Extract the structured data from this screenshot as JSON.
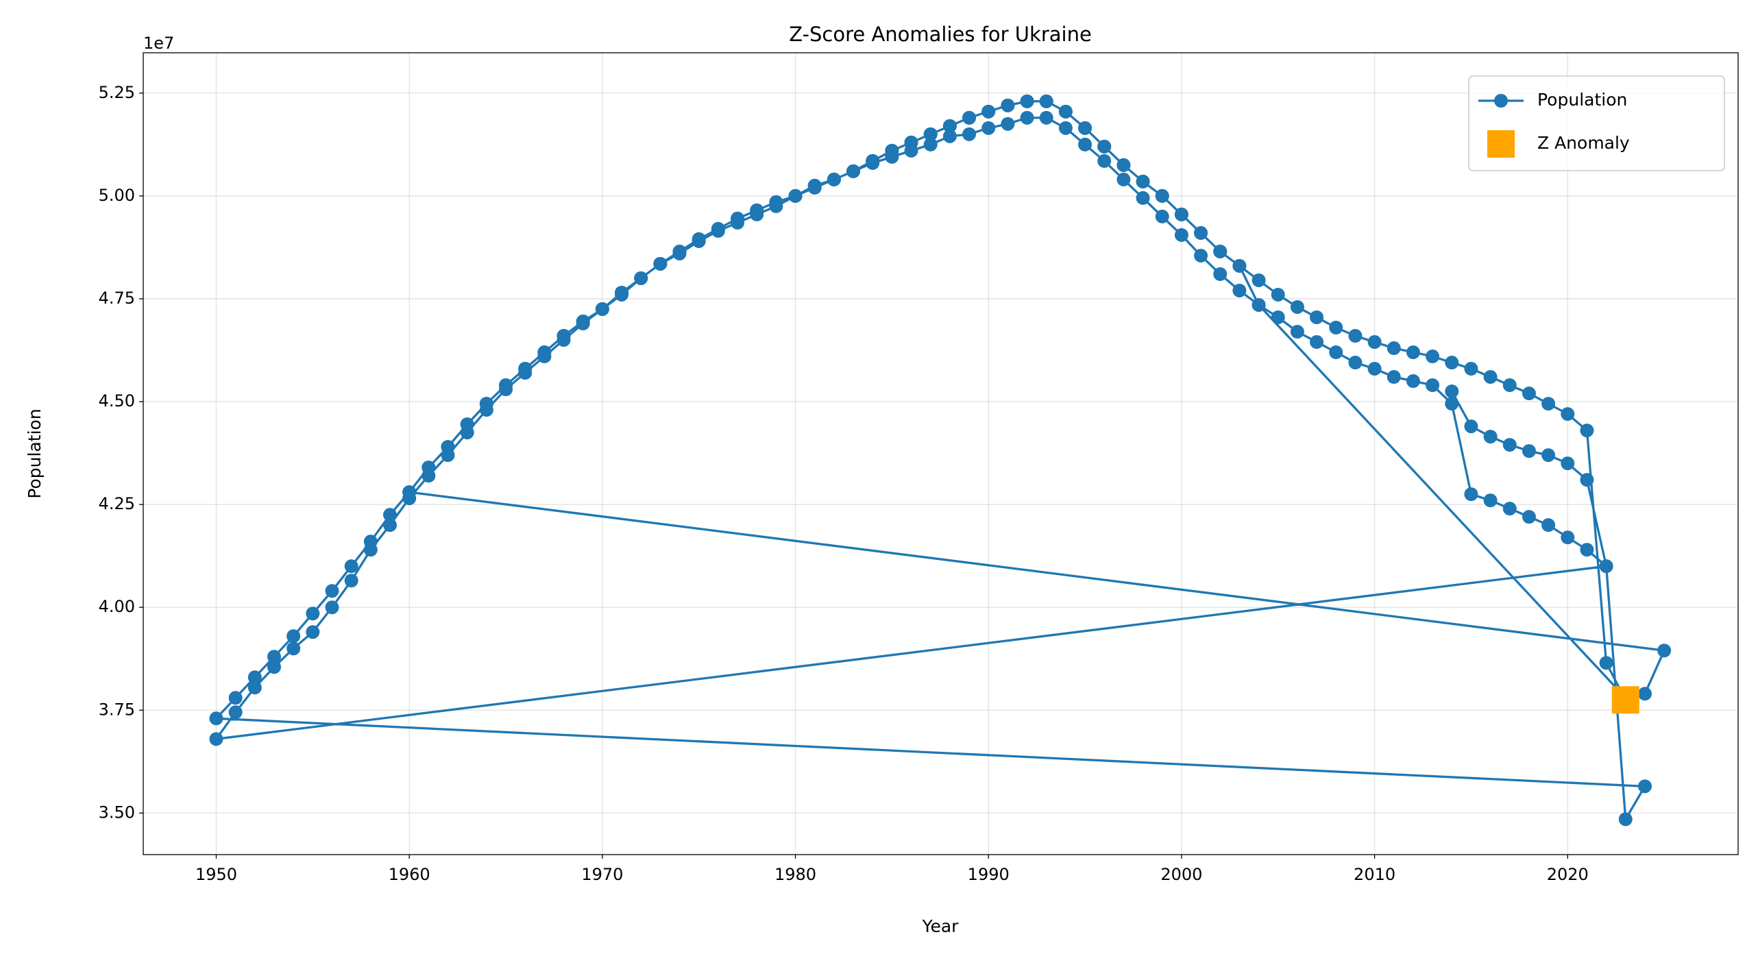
{
  "chart_data": {
    "type": "line",
    "title": "Z-Score Anomalies for Ukraine",
    "xlabel": "Year",
    "ylabel": "Population",
    "y_offset_label": "1e7",
    "xlim": [
      1946.22,
      2028.83
    ],
    "ylim": [
      3.399,
      5.348
    ],
    "xticks": [
      1950,
      1960,
      1970,
      1980,
      1990,
      2000,
      2010,
      2020
    ],
    "yticks": [
      {
        "value": 3.5,
        "label": "3.50"
      },
      3.75,
      {
        "value": 4.0,
        "label": "4.00"
      },
      4.25,
      {
        "value": 4.5,
        "label": "4.50"
      },
      4.75,
      {
        "value": 5.0,
        "label": "5.00"
      },
      5.25
    ],
    "grid": true,
    "legend": "upper right",
    "series": [
      {
        "name": "Population",
        "color": "#1f77b4",
        "mark": "line",
        "x": [
          2014,
          2015,
          2016,
          2017,
          2018,
          2019,
          2020,
          2021,
          2022,
          1950,
          1951,
          1952,
          1953,
          1954,
          1955,
          1956,
          1957,
          1958,
          1959,
          1960,
          1961,
          1962,
          1963,
          1964,
          1965,
          1966,
          1967,
          1968,
          1969,
          1970,
          1971,
          1972,
          1973,
          1974,
          1975,
          1976,
          1977,
          1978,
          1979,
          1980,
          1981,
          1982,
          1983,
          1984,
          1985,
          1986,
          1987,
          1988,
          1989,
          1990,
          1991,
          1992,
          1993,
          1994,
          1995,
          1996,
          1997,
          1998,
          1999,
          2000,
          2001,
          2002,
          2003,
          2004,
          2005,
          2006,
          2007,
          2008,
          2009,
          2010,
          2011,
          2012,
          2013,
          2014,
          2015,
          2016,
          2017,
          2018,
          2019,
          2020,
          2021,
          2022,
          2023,
          2024,
          1950,
          1951,
          1952,
          1953,
          1954,
          1955,
          1956,
          1957,
          1958,
          1959,
          1960,
          1961,
          1962,
          1963,
          1964,
          1965,
          1966,
          1967,
          1968,
          1969,
          1970,
          1971,
          1972,
          1973,
          1974,
          1975,
          1976,
          1977,
          1978,
          1979,
          1980,
          1981,
          1982,
          1983,
          1984,
          1985,
          1986,
          1987,
          1988,
          1989,
          1990,
          1991,
          1992,
          1993,
          1994,
          1995,
          1996,
          1997,
          1998,
          1999,
          2000,
          2001,
          2002,
          2003,
          2004,
          2005,
          2006,
          2007,
          2008,
          2009,
          2010,
          2011,
          2012,
          2013,
          2014,
          2015,
          2016,
          2017,
          2018,
          2019,
          2020,
          2021,
          2022,
          2023,
          2024,
          2025,
          1960,
          1961,
          1962,
          1963,
          1964,
          1965,
          1966,
          1967,
          1968,
          1969,
          1970,
          1971,
          1972,
          1973,
          1974,
          1975,
          1976,
          1977,
          1978,
          1979,
          1980,
          1981,
          1982,
          1983,
          1984,
          1985,
          1986,
          1987,
          1988,
          1989,
          1990,
          1991,
          1992,
          1993,
          1994,
          1995,
          1996,
          1997,
          1998,
          1999,
          2000,
          2001,
          2002,
          2003,
          2004,
          2023
        ],
        "values": [
          4.525,
          4.44,
          4.415,
          4.395,
          4.38,
          4.37,
          4.35,
          4.31,
          4.1,
          3.68,
          3.745,
          3.805,
          3.855,
          3.9,
          3.94,
          4.0,
          4.065,
          4.14,
          4.2,
          4.265,
          4.32,
          4.37,
          4.425,
          4.48,
          4.53,
          4.57,
          4.61,
          4.65,
          4.69,
          4.725,
          4.76,
          4.8,
          4.835,
          4.86,
          4.89,
          4.915,
          4.935,
          4.955,
          4.975,
          5.0,
          5.02,
          5.04,
          5.06,
          5.08,
          5.095,
          5.11,
          5.125,
          5.145,
          5.15,
          5.165,
          5.175,
          5.19,
          5.19,
          5.165,
          5.125,
          5.085,
          5.04,
          4.995,
          4.95,
          4.905,
          4.855,
          4.81,
          4.77,
          4.735,
          4.705,
          4.67,
          4.645,
          4.62,
          4.595,
          4.58,
          4.56,
          4.55,
          4.54,
          4.495,
          4.275,
          4.26,
          4.24,
          4.22,
          4.2,
          4.17,
          4.14,
          4.1,
          3.485,
          3.565,
          3.73,
          3.78,
          3.83,
          3.88,
          3.93,
          3.985,
          4.04,
          4.1,
          4.16,
          4.225,
          4.28,
          4.34,
          4.39,
          4.445,
          4.495,
          4.54,
          4.58,
          4.62,
          4.66,
          4.695,
          4.725,
          4.765,
          4.8,
          4.835,
          4.865,
          4.895,
          4.92,
          4.945,
          4.965,
          4.985,
          5.0,
          5.025,
          5.04,
          5.06,
          5.085,
          5.11,
          5.13,
          5.15,
          5.17,
          5.19,
          5.205,
          5.22,
          5.23,
          5.23,
          5.205,
          5.165,
          5.12,
          5.075,
          5.035,
          5.0,
          4.955,
          4.91,
          4.865,
          4.83,
          4.795,
          4.76,
          4.73,
          4.705,
          4.68,
          4.66,
          4.645,
          4.63,
          4.62,
          4.61,
          4.595,
          4.58,
          4.56,
          4.54,
          4.52,
          4.495,
          4.47,
          4.43,
          3.865,
          3.775,
          3.79,
          3.895,
          4.28,
          4.34,
          4.39,
          4.445,
          4.495,
          4.54,
          4.58,
          4.62,
          4.66,
          4.695,
          4.725,
          4.765,
          4.8,
          4.835,
          4.865,
          4.895,
          4.92,
          4.945,
          4.965,
          4.985,
          5.0,
          5.025,
          5.04,
          5.06,
          5.085,
          5.11,
          5.13,
          5.15,
          5.17,
          5.19,
          5.205,
          5.22,
          5.23,
          5.23,
          5.205,
          5.165,
          5.12,
          5.075,
          5.035,
          5.0,
          4.955,
          4.91,
          4.865,
          4.83,
          4.735,
          3.78
        ]
      },
      {
        "name": "Z Anomaly",
        "color": "#ffa500",
        "mark": "square",
        "x": [
          2023
        ],
        "values": [
          3.775
        ]
      }
    ]
  }
}
